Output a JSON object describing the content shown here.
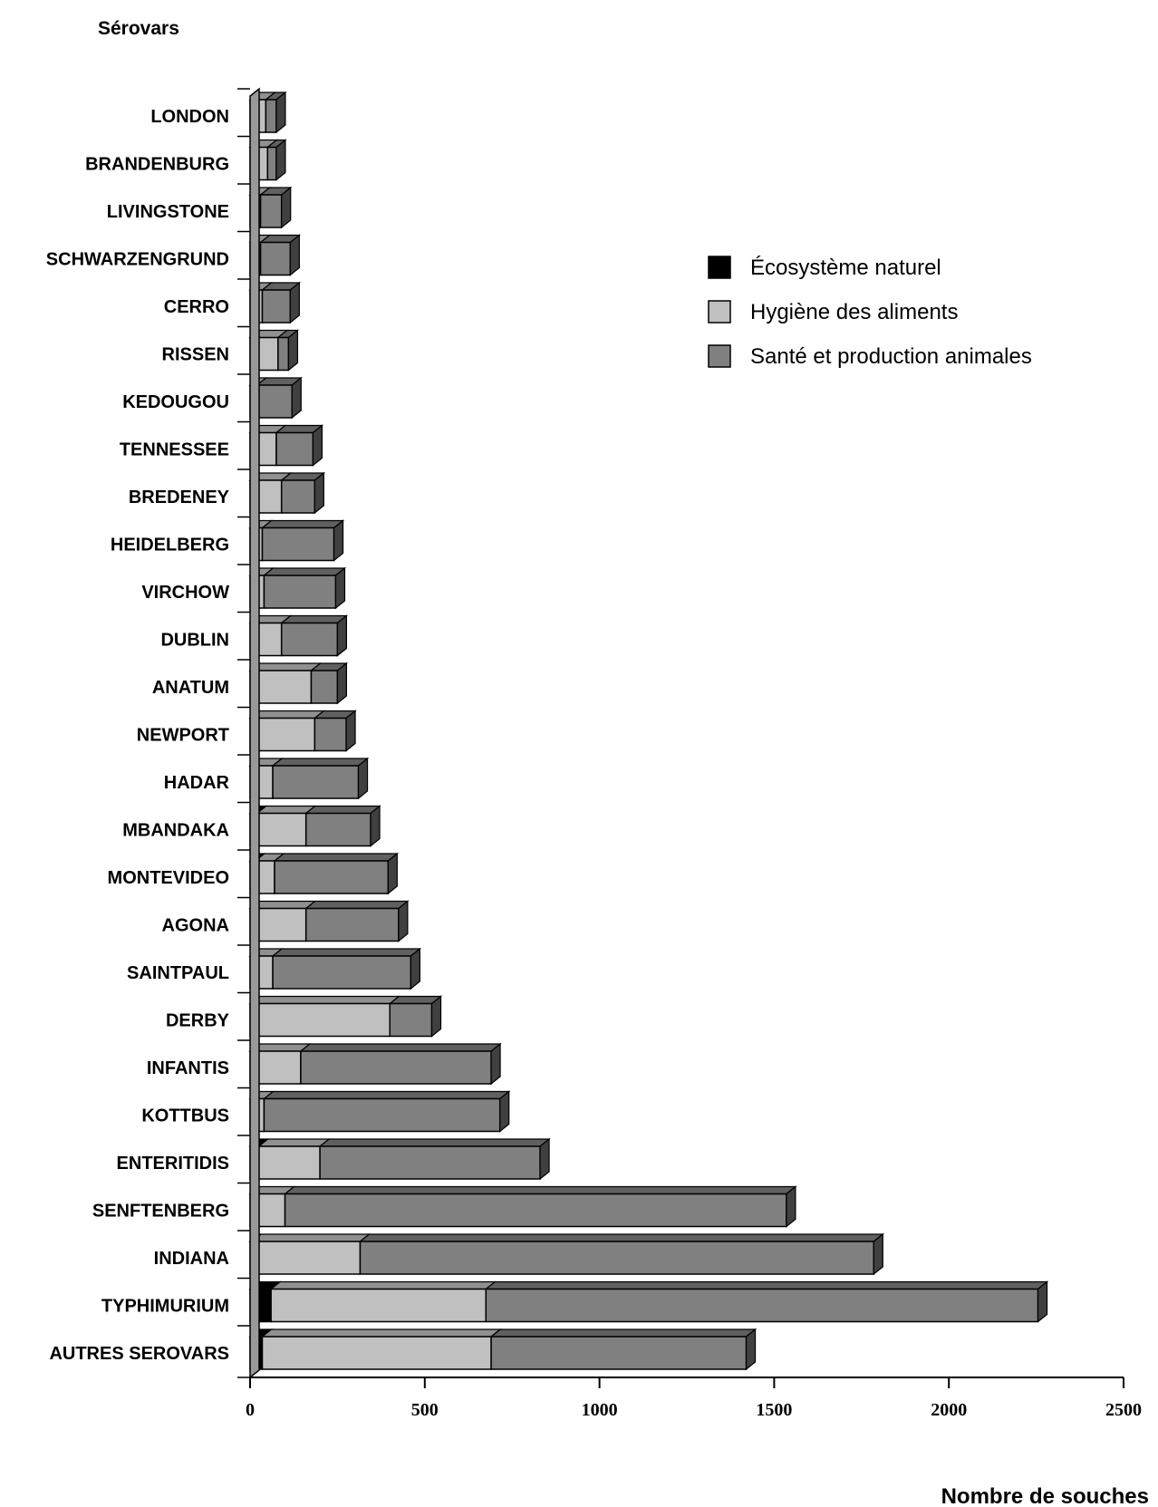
{
  "chart_data": {
    "type": "bar",
    "orientation": "horizontal",
    "stacked": true,
    "style": "3d",
    "ylabel": "Sérovars",
    "xlabel": "Nombre de souches",
    "xlim": [
      0,
      2500
    ],
    "xticks": [
      0,
      500,
      1000,
      1500,
      2000,
      2500
    ],
    "legend_position": "right",
    "categories": [
      "LONDON",
      "BRANDENBURG",
      "LIVINGSTONE",
      "SCHWARZENGRUND",
      "CERRO",
      "RISSEN",
      "KEDOUGOU",
      "TENNESSEE",
      "BREDENEY",
      "HEIDELBERG",
      "VIRCHOW",
      "DUBLIN",
      "ANATUM",
      "NEWPORT",
      "HADAR",
      "MBANDAKA",
      "MONTEVIDEO",
      "AGONA",
      "SAINTPAUL",
      "DERBY",
      "INFANTIS",
      "KOTTBUS",
      "ENTERITIDIS",
      "SENFTENBERG",
      "INDIANA",
      "TYPHIMURIUM",
      "AUTRES SEROVARS"
    ],
    "series": [
      {
        "name": "Écosystème naturel",
        "color": "#000000",
        "values": [
          0,
          0,
          0,
          0,
          0,
          0,
          0,
          0,
          0,
          0,
          0,
          0,
          0,
          0,
          0,
          20,
          15,
          0,
          0,
          0,
          0,
          0,
          25,
          0,
          5,
          60,
          35
        ]
      },
      {
        "name": "Hygiène des aliments",
        "color": "#c0c0c0",
        "values": [
          45,
          50,
          30,
          30,
          35,
          80,
          20,
          75,
          90,
          35,
          40,
          90,
          175,
          185,
          65,
          140,
          55,
          160,
          65,
          400,
          145,
          40,
          175,
          100,
          310,
          615,
          655
        ]
      },
      {
        "name": "Santé et production animales",
        "color": "#808080",
        "values": [
          30,
          25,
          60,
          85,
          80,
          30,
          100,
          105,
          95,
          205,
          205,
          160,
          75,
          90,
          245,
          185,
          325,
          265,
          395,
          120,
          545,
          675,
          630,
          1435,
          1470,
          1580,
          730
        ]
      }
    ]
  }
}
